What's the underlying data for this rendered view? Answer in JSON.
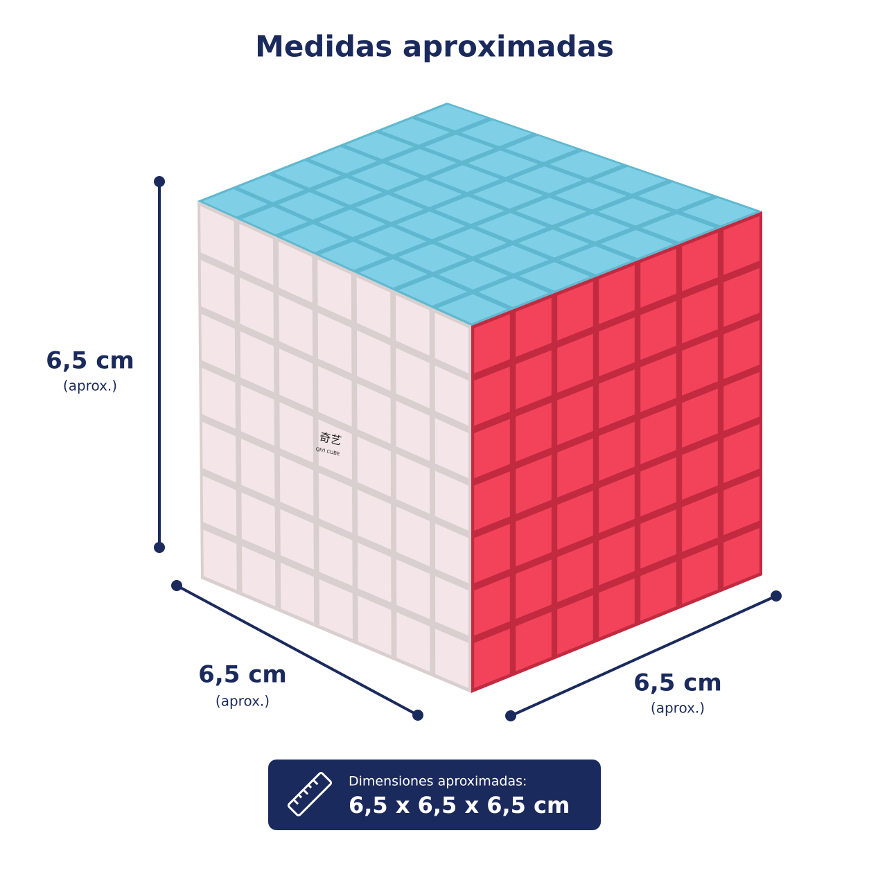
{
  "title": "Medidas aproximadas",
  "dimensions": [
    {
      "label": "6,5 cm",
      "note": "(aprox.)"
    },
    {
      "label": "6,5 cm",
      "note": "(aprox.)"
    },
    {
      "label": "6,5 cm",
      "note": "(aprox.)"
    }
  ],
  "badge": {
    "label": "Dimensiones aproximadas:",
    "value": "6,5 x 6,5 x 6,5 cm"
  },
  "logo": {
    "name": "奇艺",
    "subtitle": "QIYI CUBE"
  }
}
